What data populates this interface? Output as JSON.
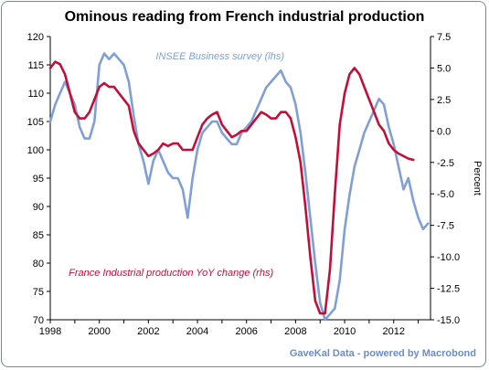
{
  "chart_data": {
    "type": "line",
    "title": "Ominous reading from French industrial production",
    "source": "GaveKal Data - powered by Macrobond",
    "x_ticks": [
      "1998",
      "2000",
      "2002",
      "2004",
      "2006",
      "2008",
      "2010",
      "2012"
    ],
    "xlim": [
      1998.0,
      2013.5
    ],
    "left_axis": {
      "ylim": [
        70,
        120
      ],
      "ticks": [
        "70",
        "75",
        "80",
        "85",
        "90",
        "95",
        "100",
        "105",
        "110",
        "115",
        "120"
      ]
    },
    "right_axis": {
      "label": "Percent",
      "ylim": [
        -15,
        7.5
      ],
      "ticks": [
        "-15.0",
        "-12.5",
        "-10.0",
        "-7.5",
        "-5.0",
        "-2.5",
        "0.0",
        "2.5",
        "5.0",
        "7.5"
      ]
    },
    "grid": false,
    "series": [
      {
        "name": "INSEE Business survey (lhs)",
        "axis": "left",
        "color": "#7f9fd6",
        "x": [
          1998.0,
          1998.2,
          1998.4,
          1998.6,
          1998.8,
          1999.0,
          1999.2,
          1999.4,
          1999.6,
          1999.8,
          2000.0,
          2000.2,
          2000.4,
          2000.6,
          2000.8,
          2001.0,
          2001.2,
          2001.4,
          2001.6,
          2001.8,
          2002.0,
          2002.2,
          2002.4,
          2002.6,
          2002.8,
          2003.0,
          2003.2,
          2003.4,
          2003.6,
          2003.8,
          2004.0,
          2004.2,
          2004.4,
          2004.6,
          2004.8,
          2005.0,
          2005.2,
          2005.4,
          2005.6,
          2005.8,
          2006.0,
          2006.2,
          2006.4,
          2006.6,
          2006.8,
          2007.0,
          2007.2,
          2007.4,
          2007.6,
          2007.8,
          2008.0,
          2008.2,
          2008.4,
          2008.6,
          2008.8,
          2009.0,
          2009.2,
          2009.4,
          2009.6,
          2009.8,
          2010.0,
          2010.2,
          2010.4,
          2010.6,
          2010.8,
          2011.0,
          2011.2,
          2011.4,
          2011.6,
          2011.8,
          2012.0,
          2012.2,
          2012.4,
          2012.6,
          2012.8,
          2013.0,
          2013.2,
          2013.4
        ],
        "values": [
          105,
          108,
          110,
          112,
          110,
          108,
          104,
          102,
          102,
          105,
          115,
          117,
          116,
          117,
          116,
          115,
          112,
          106,
          101,
          98,
          94,
          98,
          100,
          98,
          96,
          95,
          95,
          93,
          88,
          95,
          100,
          103,
          104,
          105,
          105,
          103,
          102,
          101,
          101,
          103,
          104,
          105,
          107,
          109,
          111,
          112,
          113,
          114,
          112,
          111,
          108,
          103,
          96,
          88,
          80,
          73,
          70,
          71,
          72,
          77,
          86,
          92,
          97,
          100,
          103,
          105,
          107,
          109,
          108,
          104,
          101,
          97,
          93,
          95,
          91,
          88,
          86,
          87
        ]
      },
      {
        "name": "France Industrial production YoY change (rhs)",
        "axis": "right",
        "color": "#c0103a",
        "x": [
          1998.0,
          1998.2,
          1998.4,
          1998.6,
          1998.8,
          1999.0,
          1999.2,
          1999.4,
          1999.6,
          1999.8,
          2000.0,
          2000.2,
          2000.4,
          2000.6,
          2000.8,
          2001.0,
          2001.2,
          2001.4,
          2001.6,
          2001.8,
          2002.0,
          2002.2,
          2002.4,
          2002.6,
          2002.8,
          2003.0,
          2003.2,
          2003.4,
          2003.6,
          2003.8,
          2004.0,
          2004.2,
          2004.4,
          2004.6,
          2004.8,
          2005.0,
          2005.2,
          2005.4,
          2005.6,
          2005.8,
          2006.0,
          2006.2,
          2006.4,
          2006.6,
          2006.8,
          2007.0,
          2007.2,
          2007.4,
          2007.6,
          2007.8,
          2008.0,
          2008.2,
          2008.4,
          2008.6,
          2008.8,
          2009.0,
          2009.2,
          2009.4,
          2009.6,
          2009.8,
          2010.0,
          2010.2,
          2010.4,
          2010.6,
          2010.8,
          2011.0,
          2011.2,
          2011.4,
          2011.6,
          2011.8,
          2012.0,
          2012.2,
          2012.4,
          2012.6,
          2012.8
        ],
        "values": [
          5.0,
          5.5,
          5.3,
          4.5,
          3.0,
          1.5,
          1.0,
          1.0,
          1.5,
          2.5,
          3.5,
          3.8,
          3.5,
          3.5,
          3.0,
          2.5,
          2.0,
          0.0,
          -1.0,
          -1.5,
          -2.0,
          -1.8,
          -1.5,
          -1.0,
          -1.2,
          -1.0,
          -1.0,
          -1.5,
          -1.5,
          -1.5,
          -0.5,
          0.5,
          1.0,
          1.3,
          1.5,
          0.5,
          0.0,
          -0.5,
          -0.3,
          0.0,
          0.0,
          0.5,
          1.0,
          1.5,
          1.3,
          1.0,
          1.0,
          1.5,
          1.5,
          1.0,
          -0.5,
          -2.5,
          -6.0,
          -10.0,
          -13.5,
          -14.5,
          -14.5,
          -11.0,
          -5.0,
          0.5,
          3.0,
          4.5,
          5.0,
          4.5,
          3.5,
          2.5,
          1.5,
          0.5,
          0.0,
          -1.0,
          -1.5,
          -1.8,
          -2.0,
          -2.2,
          -2.3
        ]
      }
    ],
    "annotations": [
      {
        "text": "INSEE Business survey  (lhs)",
        "x": 2002.3,
        "y": 116,
        "axis": "left",
        "color": "#7f9fd6"
      },
      {
        "text": "France Industrial production YoY change (rhs)",
        "x": 1998.75,
        "y": -11.5,
        "axis": "right",
        "color": "#c0103a"
      }
    ]
  }
}
